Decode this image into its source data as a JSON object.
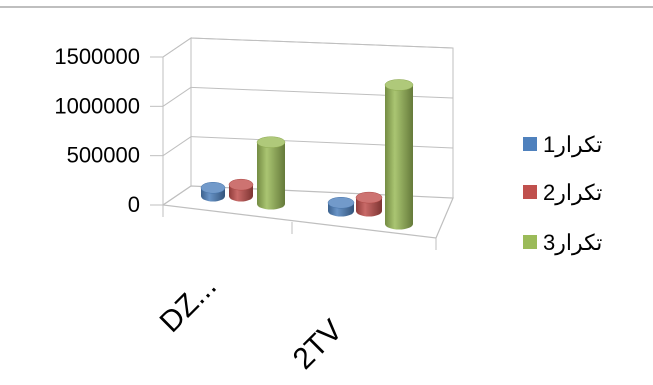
{
  "chart_data": {
    "type": "bar",
    "style": "3d-cylinder",
    "categories": [
      "DZ...",
      "2TV"
    ],
    "series": [
      {
        "name": "تكرار1",
        "color": "#4F81BD",
        "values": [
          80000,
          80000
        ]
      },
      {
        "name": "تكرار2",
        "color": "#C0504D",
        "values": [
          110000,
          130000
        ]
      },
      {
        "name": "تكرار3",
        "color": "#9BBB59",
        "values": [
          600000,
          1350000
        ]
      }
    ],
    "y_ticks": [
      "1500000",
      "1000000",
      "500000",
      "0"
    ],
    "ylim": [
      0,
      1500000
    ],
    "grid": true,
    "legend": "right",
    "title": "",
    "xlabel": "",
    "ylabel": ""
  }
}
